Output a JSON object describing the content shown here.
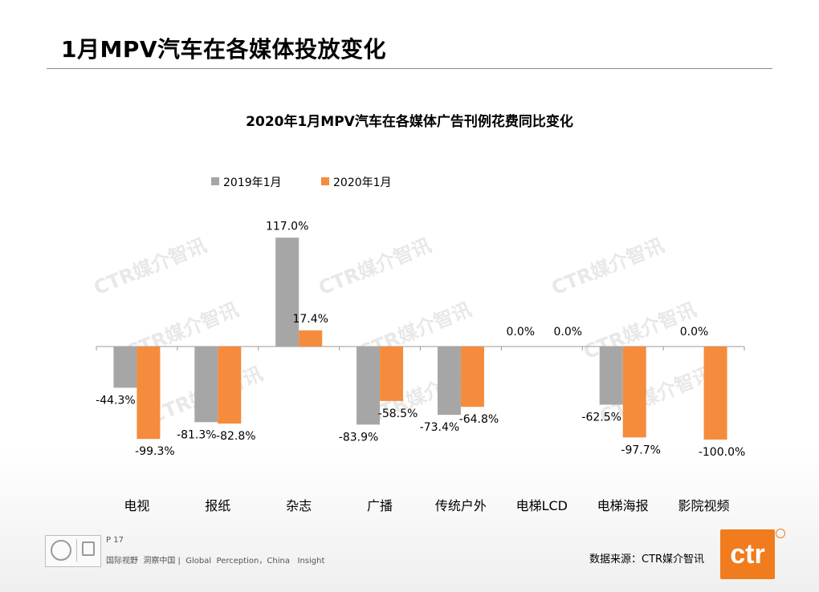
{
  "page": {
    "title": "1月MPV汽车在各媒体投放变化",
    "page_number": "P 17",
    "slogan": "国际视野  洞察中国 |  Global  Perception，China   Insight",
    "source": "数据来源：CTR媒介智讯",
    "logo_text": "ctr",
    "watermark": "CTR媒介智讯"
  },
  "colors": {
    "series_2019": "#a6a6a6",
    "series_2020": "#f58b3c",
    "brand": "#f07c1e"
  },
  "chart_data": {
    "type": "bar",
    "title": "2020年1月MPV汽车在各媒体广告刊例花费同比变化",
    "categories": [
      "电视",
      "报纸",
      "杂志",
      "广播",
      "传统户外",
      "电梯LCD",
      "电梯海报",
      "影院视频"
    ],
    "series": [
      {
        "name": "2019年1月",
        "values": [
          -44.3,
          -81.3,
          117.0,
          -83.9,
          -73.4,
          0.0,
          -62.5,
          null
        ],
        "labels": [
          "-44.3%",
          "-81.3%",
          "117.0%",
          "-83.9%",
          "-73.4%",
          "0.0%",
          "-62.5%",
          ""
        ]
      },
      {
        "name": "2020年1月",
        "values": [
          -99.3,
          -82.8,
          17.4,
          -58.5,
          -64.8,
          0.0,
          -97.7,
          -100.0
        ],
        "labels": [
          "-99.3%",
          "-82.8%",
          "17.4%",
          "-58.5%",
          "-64.8%",
          "0.0%",
          "-97.7%",
          "-100.0%"
        ]
      }
    ],
    "extra_labels": [
      {
        "category_index": 7,
        "text": "0.0%"
      }
    ],
    "legend_position": "top-left",
    "grid": false,
    "unit": "%"
  }
}
